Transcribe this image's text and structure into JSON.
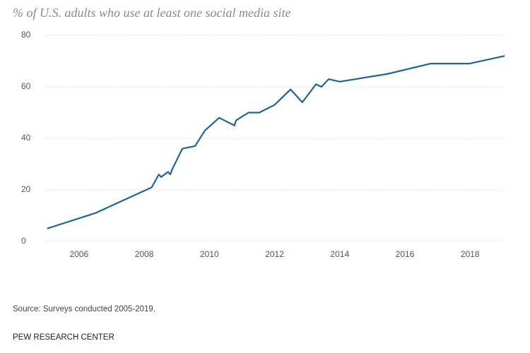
{
  "chart_data": {
    "type": "line",
    "title": "% of U.S. adults who use at least one social media site",
    "x": [
      2005.02,
      2006.5,
      2008.23,
      2008.45,
      2008.52,
      2008.73,
      2008.8,
      2008.86,
      2009.17,
      2009.56,
      2009.86,
      2010.3,
      2010.77,
      2010.82,
      2011.2,
      2011.53,
      2012.0,
      2012.49,
      2012.85,
      2013.27,
      2013.44,
      2013.66,
      2014.0,
      2015.46,
      2016.78,
      2017.97,
      2019.06
    ],
    "values": [
      5,
      11,
      21,
      26,
      25,
      27,
      26,
      28,
      36,
      37,
      43,
      48,
      45,
      47,
      50,
      50,
      53,
      59,
      54,
      61,
      60,
      63,
      62,
      65,
      69,
      69,
      72
    ],
    "color": "#23638f",
    "xlim": [
      2004.92,
      2019.1
    ],
    "xticks": [
      2006,
      2008,
      2010,
      2012,
      2014,
      2016,
      2018
    ],
    "ylim": [
      0,
      80
    ],
    "yticks": [
      0,
      20,
      40,
      60,
      80
    ],
    "grid": true,
    "source": "Source: Surveys conducted 2005-2019.",
    "credit": "PEW RESEARCH CENTER"
  }
}
